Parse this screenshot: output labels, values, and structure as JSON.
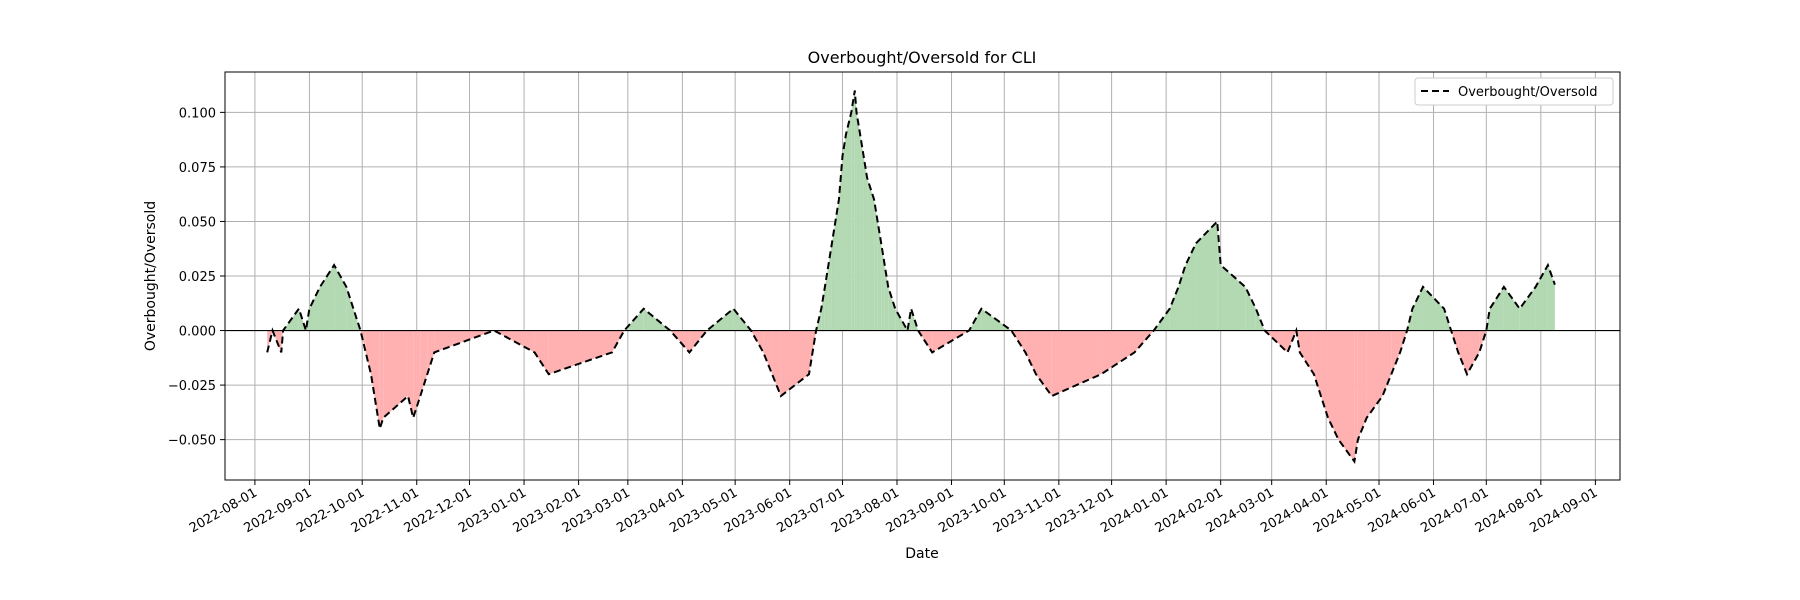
{
  "chart_data": {
    "type": "line",
    "title": "Overbought/Oversold for CLI",
    "xlabel": "Date",
    "ylabel": "Overbought/Oversold",
    "xlim": [
      "2022-07-15",
      "2024-09-15"
    ],
    "ylim": [
      -0.0685,
      0.1185
    ],
    "x_ticks": [
      "2022-08-01",
      "2022-09-01",
      "2022-10-01",
      "2022-11-01",
      "2022-12-01",
      "2023-01-01",
      "2023-02-01",
      "2023-03-01",
      "2023-04-01",
      "2023-05-01",
      "2023-06-01",
      "2023-07-01",
      "2023-08-01",
      "2023-09-01",
      "2023-10-01",
      "2023-11-01",
      "2023-12-01",
      "2024-01-01",
      "2024-02-01",
      "2024-03-01",
      "2024-04-01",
      "2024-05-01",
      "2024-06-01",
      "2024-07-01",
      "2024-08-01",
      "2024-09-01"
    ],
    "y_ticks": [
      -0.05,
      -0.025,
      0.0,
      0.025,
      0.05,
      0.075,
      0.1
    ],
    "y_tick_labels": [
      "−0.050",
      "−0.025",
      "0.000",
      "0.025",
      "0.050",
      "0.075",
      "0.100"
    ],
    "grid": true,
    "legend_position": "top-right",
    "reference_line": 0,
    "series": [
      {
        "name": "Overbought/Oversold",
        "style": "dashed",
        "color": "#000000",
        "positive_fill": "#b3d9b3",
        "negative_fill": "#ffb0b0",
        "points": [
          [
            "2022-08-08",
            -0.01
          ],
          [
            "2022-08-11",
            0.0
          ],
          [
            "2022-08-16",
            -0.01
          ],
          [
            "2022-08-17",
            0.0
          ],
          [
            "2022-08-26",
            0.01
          ],
          [
            "2022-08-30",
            0.0
          ],
          [
            "2022-09-01",
            0.01
          ],
          [
            "2022-09-07",
            0.02
          ],
          [
            "2022-09-15",
            0.03
          ],
          [
            "2022-09-22",
            0.02
          ],
          [
            "2022-09-26",
            0.01
          ],
          [
            "2022-09-30",
            0.0
          ],
          [
            "2022-10-03",
            -0.01
          ],
          [
            "2022-10-06",
            -0.02
          ],
          [
            "2022-10-08",
            -0.03
          ],
          [
            "2022-10-11",
            -0.045
          ],
          [
            "2022-10-13",
            -0.04
          ],
          [
            "2022-10-27",
            -0.03
          ],
          [
            "2022-10-30",
            -0.04
          ],
          [
            "2022-11-03",
            -0.03
          ],
          [
            "2022-11-07",
            -0.02
          ],
          [
            "2022-11-11",
            -0.01
          ],
          [
            "2022-12-15",
            0.0
          ],
          [
            "2023-01-07",
            -0.01
          ],
          [
            "2023-01-15",
            -0.02
          ],
          [
            "2023-02-20",
            -0.01
          ],
          [
            "2023-02-27",
            0.0
          ],
          [
            "2023-03-10",
            0.01
          ],
          [
            "2023-03-25",
            0.0
          ],
          [
            "2023-04-05",
            -0.01
          ],
          [
            "2023-04-15",
            0.0
          ],
          [
            "2023-04-30",
            0.01
          ],
          [
            "2023-05-10",
            0.0
          ],
          [
            "2023-05-17",
            -0.01
          ],
          [
            "2023-05-22",
            -0.02
          ],
          [
            "2023-05-27",
            -0.03
          ],
          [
            "2023-06-12",
            -0.02
          ],
          [
            "2023-06-16",
            0.0
          ],
          [
            "2023-06-19",
            0.01
          ],
          [
            "2023-06-21",
            0.02
          ],
          [
            "2023-06-23",
            0.03
          ],
          [
            "2023-06-25",
            0.04
          ],
          [
            "2023-06-27",
            0.05
          ],
          [
            "2023-06-29",
            0.06
          ],
          [
            "2023-07-01",
            0.08
          ],
          [
            "2023-07-03",
            0.09
          ],
          [
            "2023-07-06",
            0.1
          ],
          [
            "2023-07-08",
            0.11
          ],
          [
            "2023-07-09",
            0.1
          ],
          [
            "2023-07-11",
            0.09
          ],
          [
            "2023-07-13",
            0.08
          ],
          [
            "2023-07-15",
            0.07
          ],
          [
            "2023-07-19",
            0.06
          ],
          [
            "2023-07-21",
            0.05
          ],
          [
            "2023-07-23",
            0.04
          ],
          [
            "2023-07-25",
            0.03
          ],
          [
            "2023-07-27",
            0.02
          ],
          [
            "2023-07-31",
            0.01
          ],
          [
            "2023-08-07",
            0.0
          ],
          [
            "2023-08-09",
            0.01
          ],
          [
            "2023-08-13",
            0.0
          ],
          [
            "2023-08-21",
            -0.01
          ],
          [
            "2023-09-11",
            0.0
          ],
          [
            "2023-09-18",
            0.01
          ],
          [
            "2023-10-05",
            0.0
          ],
          [
            "2023-10-13",
            -0.01
          ],
          [
            "2023-10-19",
            -0.02
          ],
          [
            "2023-10-28",
            -0.03
          ],
          [
            "2023-11-25",
            -0.02
          ],
          [
            "2023-12-14",
            -0.01
          ],
          [
            "2023-12-25",
            0.0
          ],
          [
            "2024-01-03",
            0.01
          ],
          [
            "2024-01-08",
            0.02
          ],
          [
            "2024-01-12",
            0.03
          ],
          [
            "2024-01-18",
            0.04
          ],
          [
            "2024-01-30",
            0.05
          ],
          [
            "2024-02-01",
            0.03
          ],
          [
            "2024-02-15",
            0.02
          ],
          [
            "2024-02-21",
            0.01
          ],
          [
            "2024-02-26",
            0.0
          ],
          [
            "2024-03-10",
            -0.01
          ],
          [
            "2024-03-15",
            0.0
          ],
          [
            "2024-03-17",
            -0.01
          ],
          [
            "2024-03-25",
            -0.02
          ],
          [
            "2024-03-29",
            -0.03
          ],
          [
            "2024-04-02",
            -0.04
          ],
          [
            "2024-04-08",
            -0.05
          ],
          [
            "2024-04-17",
            -0.06
          ],
          [
            "2024-04-19",
            -0.05
          ],
          [
            "2024-04-24",
            -0.04
          ],
          [
            "2024-05-03",
            -0.03
          ],
          [
            "2024-05-08",
            -0.02
          ],
          [
            "2024-05-13",
            -0.01
          ],
          [
            "2024-05-17",
            0.0
          ],
          [
            "2024-05-20",
            0.01
          ],
          [
            "2024-05-26",
            0.02
          ],
          [
            "2024-06-07",
            0.01
          ],
          [
            "2024-06-11",
            0.0
          ],
          [
            "2024-06-15",
            -0.01
          ],
          [
            "2024-06-20",
            -0.02
          ],
          [
            "2024-06-27",
            -0.01
          ],
          [
            "2024-07-01",
            0.0
          ],
          [
            "2024-07-03",
            0.01
          ],
          [
            "2024-07-11",
            0.02
          ],
          [
            "2024-07-20",
            0.01
          ],
          [
            "2024-07-29",
            0.02
          ],
          [
            "2024-08-05",
            0.03
          ],
          [
            "2024-08-09",
            0.021
          ]
        ]
      }
    ]
  }
}
